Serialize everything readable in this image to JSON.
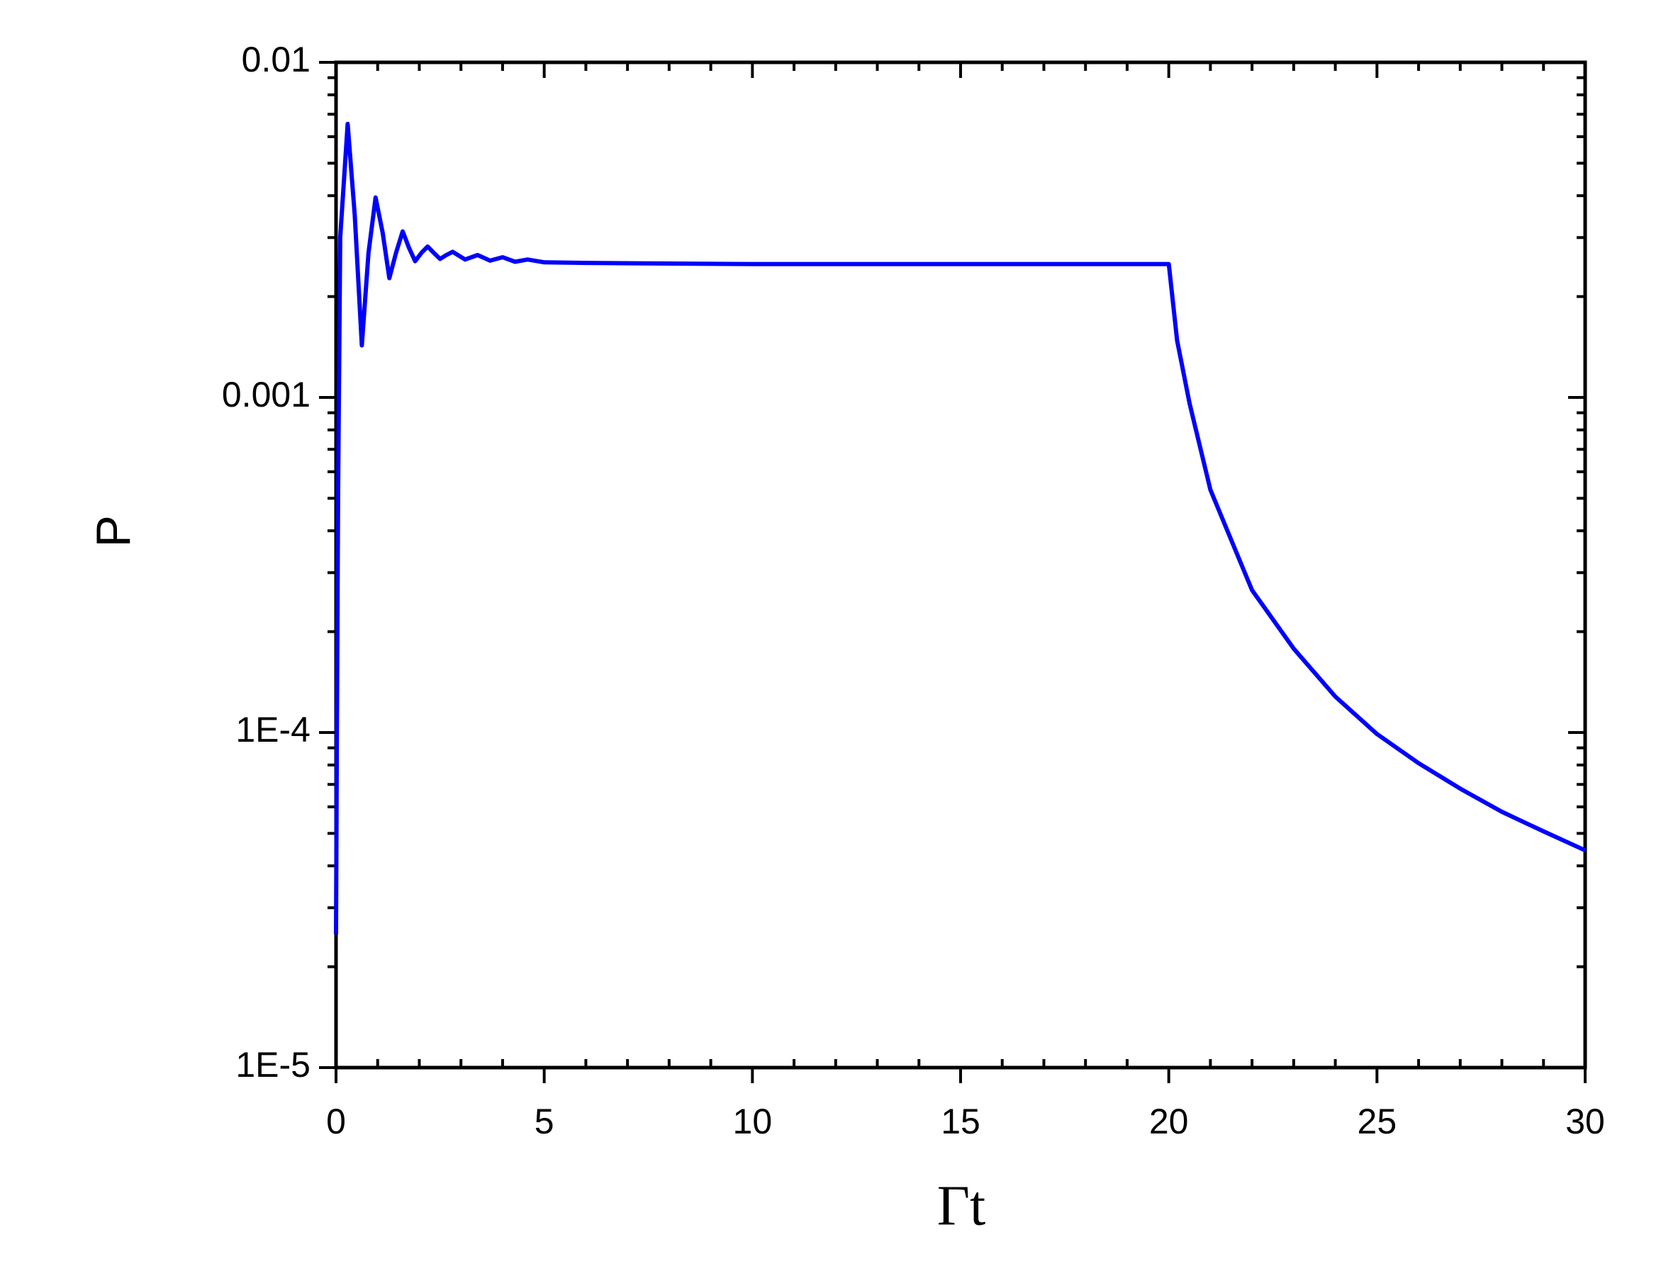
{
  "chart_data": {
    "type": "line",
    "x_label": "Γt",
    "y_label": "P",
    "x": [
      0,
      0.02,
      0.05,
      0.1,
      0.28,
      0.45,
      0.62,
      0.78,
      0.95,
      1.12,
      1.28,
      1.44,
      1.6,
      1.75,
      1.9,
      2.05,
      2.2,
      2.35,
      2.5,
      2.65,
      2.8,
      3.1,
      3.4,
      3.7,
      4.0,
      4.3,
      4.6,
      5,
      6,
      8,
      10,
      12,
      14,
      16,
      18,
      20,
      20.2,
      20.5,
      21,
      22,
      23,
      24,
      25,
      26,
      27,
      28,
      29,
      30
    ],
    "series": [
      {
        "name": "P",
        "color": "#0000ff",
        "values": [
          2.5e-05,
          0.0001,
          0.0005,
          0.003,
          0.00655,
          0.0035,
          0.00143,
          0.0027,
          0.00395,
          0.0031,
          0.00227,
          0.0027,
          0.00313,
          0.0028,
          0.00255,
          0.0027,
          0.00282,
          0.0027,
          0.00259,
          0.00266,
          0.00272,
          0.00258,
          0.00266,
          0.00256,
          0.00262,
          0.00254,
          0.00258,
          0.00253,
          0.00252,
          0.00251,
          0.0025,
          0.0025,
          0.0025,
          0.0025,
          0.0025,
          0.0025,
          0.00148,
          0.00096,
          0.00053,
          0.000266,
          0.000178,
          0.000128,
          9.9e-05,
          8.1e-05,
          6.8e-05,
          5.8e-05,
          5.07e-05,
          4.45e-05
        ]
      }
    ],
    "xlim": [
      0,
      30
    ],
    "xticks": [
      0,
      5,
      10,
      15,
      20,
      25,
      30
    ],
    "ylim": [
      1e-05,
      0.01
    ],
    "y_scale": "log",
    "yticks": [
      {
        "value": 1e-05,
        "label": "1E-5"
      },
      {
        "value": 0.0001,
        "label": "1E-4"
      },
      0.001,
      0.01
    ],
    "grid": false
  }
}
